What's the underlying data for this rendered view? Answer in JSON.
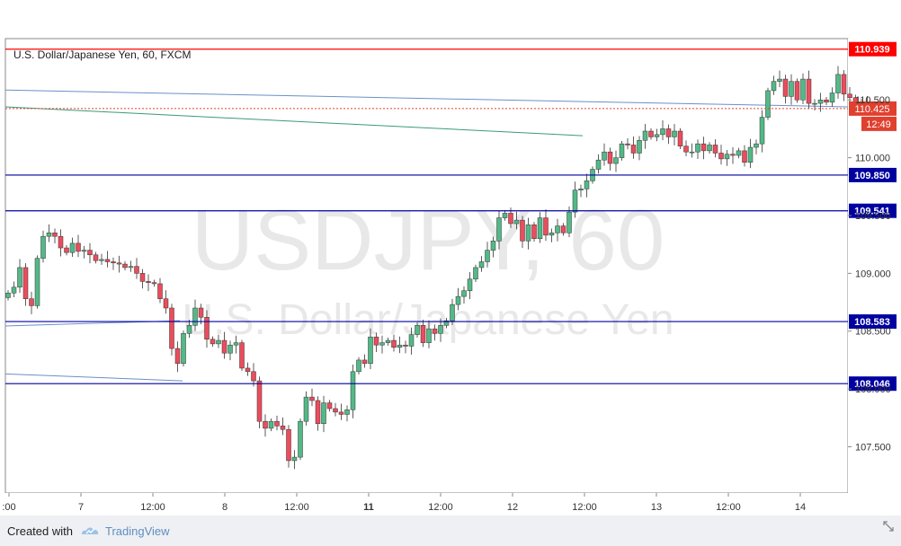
{
  "footer": {
    "created_label": "Created with",
    "brand": "TradingView"
  },
  "chart_data": {
    "type": "candlestick",
    "title": "U.S. Dollar/Japanese Yen, 60, FXCM",
    "watermark": {
      "symbol": "USDJPY, 60",
      "name": "U.S. Dollar/Japanese Yen"
    },
    "ylim": [
      107.1,
      111.03
    ],
    "yticks": [
      "107.500",
      "108.000",
      "108.500",
      "109.000",
      "109.500",
      "110.000",
      "110.500"
    ],
    "xticks": [
      ":00",
      "7",
      "12:00",
      "8",
      "12:00",
      "11",
      "12:00",
      "12",
      "12:00",
      "13",
      "12:00",
      "14"
    ],
    "bold_xticks": [
      "11"
    ],
    "colors": {
      "up": "#53b987",
      "down": "#eb4d5c",
      "support": "#0000a0",
      "resistance": "#ff0000",
      "trend": "#6a90c8",
      "trend_green": "#3a9a7a",
      "last_price": "#e0412f"
    },
    "levels": [
      {
        "value": 110.939,
        "label": "110.939",
        "kind": "resistance"
      },
      {
        "value": 109.85,
        "label": "109.850",
        "kind": "support"
      },
      {
        "value": 109.541,
        "label": "109.541",
        "kind": "support"
      },
      {
        "value": 108.583,
        "label": "108.583",
        "kind": "support"
      },
      {
        "value": 108.046,
        "label": "108.046",
        "kind": "support"
      }
    ],
    "last_price": {
      "value": 110.425,
      "label": "110.425",
      "countdown": "12:49"
    },
    "closes": [
      108.83,
      108.88,
      109.05,
      108.78,
      108.72,
      109.13,
      109.32,
      109.35,
      109.32,
      109.22,
      109.18,
      109.26,
      109.19,
      109.2,
      109.16,
      109.11,
      109.12,
      109.1,
      109.09,
      109.08,
      109.05,
      109.06,
      109.0,
      108.93,
      108.92,
      108.91,
      108.78,
      108.7,
      108.35,
      108.22,
      108.48,
      108.55,
      108.7,
      108.62,
      108.43,
      108.39,
      108.42,
      108.31,
      108.38,
      108.4,
      108.18,
      108.15,
      108.07,
      107.72,
      107.66,
      107.72,
      107.68,
      107.65,
      107.38,
      107.41,
      107.72,
      107.93,
      107.9,
      107.7,
      107.88,
      107.83,
      107.8,
      107.78,
      107.82,
      108.15,
      108.25,
      108.22,
      108.45,
      108.38,
      108.4,
      108.42,
      108.36,
      108.38,
      108.37,
      108.47,
      108.55,
      108.4,
      108.52,
      108.48,
      108.55,
      108.59,
      108.73,
      108.8,
      108.85,
      108.95,
      109.05,
      109.1,
      109.2,
      109.28,
      109.48,
      109.52,
      109.43,
      109.46,
      109.28,
      109.42,
      109.3,
      109.48,
      109.33,
      109.35,
      109.41,
      109.35,
      109.53,
      109.72,
      109.73,
      109.8,
      109.9,
      109.98,
      110.05,
      109.95,
      110.0,
      110.12,
      110.11,
      110.04,
      110.15,
      110.23,
      110.18,
      110.2,
      110.25,
      110.18,
      110.23,
      110.1,
      110.05,
      110.05,
      110.12,
      110.06,
      110.11,
      110.04,
      109.99,
      110.03,
      110.02,
      110.06,
      109.96,
      110.09,
      110.12,
      110.35,
      110.58,
      110.66,
      110.68,
      110.53,
      110.66,
      110.5,
      110.68,
      110.47,
      110.47,
      110.5,
      110.48,
      110.56,
      110.72,
      110.55,
      110.52,
      110.45,
      110.46,
      110.44,
      110.43
    ]
  }
}
